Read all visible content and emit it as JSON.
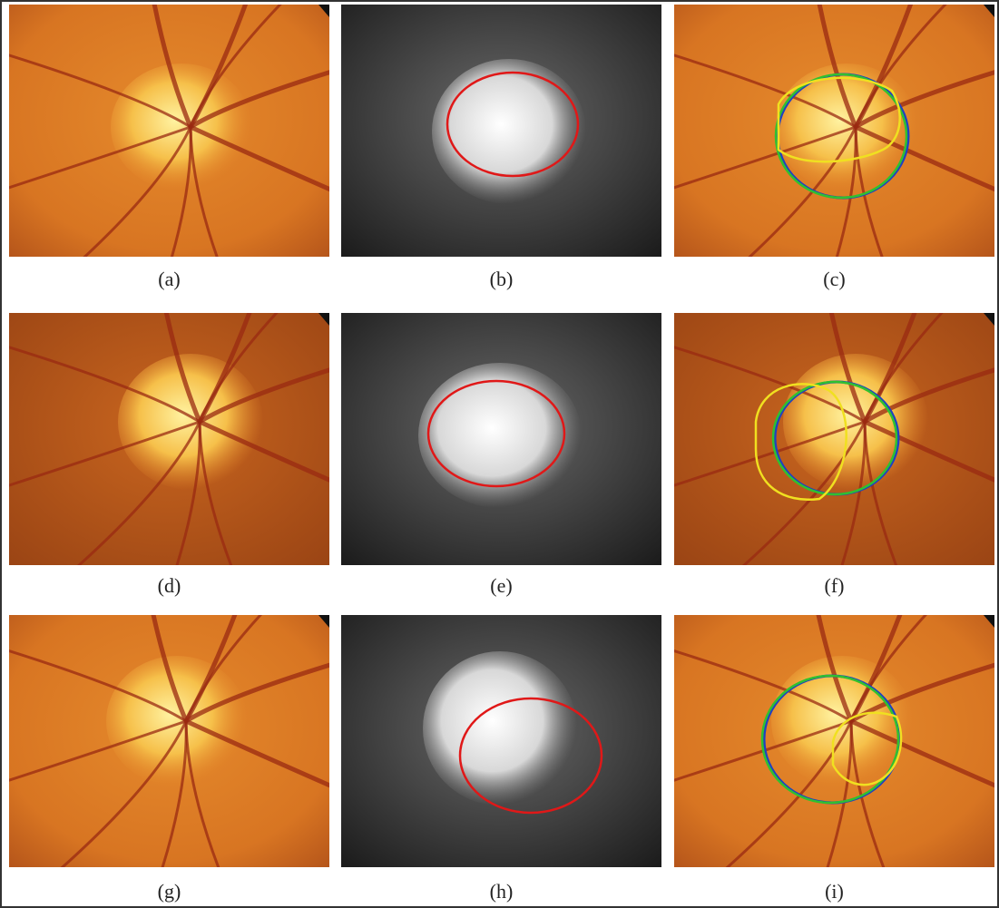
{
  "figure": {
    "captions": [
      "(a)",
      "(b)",
      "(c)",
      "(d)",
      "(e)",
      "(f)",
      "(g)",
      "(h)",
      "(i)"
    ]
  }
}
